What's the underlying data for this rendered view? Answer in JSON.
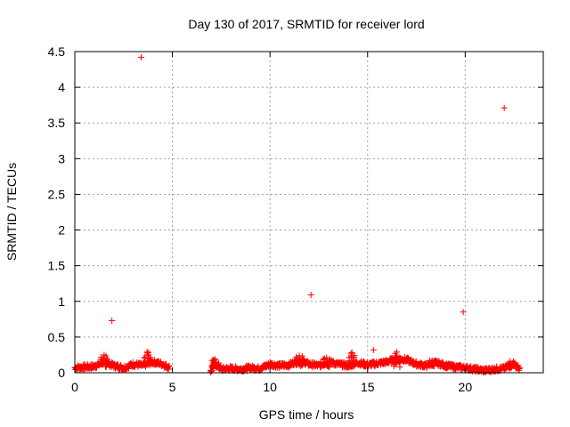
{
  "chart_data": {
    "type": "scatter",
    "title": "Day 130 of 2017, SRMTID for receiver lord",
    "xlabel": "GPS time / hours",
    "ylabel": "SRMTID / TECUs",
    "xlim": [
      0,
      24
    ],
    "ylim": [
      0,
      4.5
    ],
    "xticks": [
      0,
      5,
      10,
      15,
      20
    ],
    "yticks": [
      0,
      0.5,
      1,
      1.5,
      2,
      2.5,
      3,
      3.5,
      4,
      4.5
    ],
    "grid": true,
    "marker": "+",
    "color": "#ff0000",
    "baseline_segments": [
      {
        "x": [
          0.0,
          0.5,
          1.0,
          1.5,
          2.0,
          2.5,
          3.0,
          3.5,
          4.0,
          4.5,
          4.85
        ],
        "y": [
          0.07,
          0.08,
          0.09,
          0.15,
          0.1,
          0.07,
          0.12,
          0.1,
          0.15,
          0.12,
          0.07
        ]
      },
      {
        "x": [
          6.95,
          7.2,
          7.5,
          8.0,
          8.5,
          9.0,
          9.5,
          10.0,
          10.5,
          11.0,
          11.5,
          12.0,
          12.5,
          13.0,
          13.5,
          14.0,
          14.5,
          15.0,
          15.5,
          16.0,
          16.5,
          17.0,
          17.5,
          18.0,
          18.5,
          19.0,
          19.5,
          20.0,
          20.5,
          21.0,
          21.5,
          22.0,
          22.5,
          22.8
        ],
        "y": [
          0.02,
          0.12,
          0.05,
          0.06,
          0.05,
          0.07,
          0.06,
          0.12,
          0.1,
          0.11,
          0.18,
          0.12,
          0.1,
          0.15,
          0.12,
          0.1,
          0.14,
          0.11,
          0.13,
          0.15,
          0.2,
          0.18,
          0.12,
          0.1,
          0.14,
          0.1,
          0.08,
          0.07,
          0.05,
          0.03,
          0.05,
          0.06,
          0.12,
          0.05
        ]
      }
    ],
    "bumps": [
      {
        "x": 1.5,
        "y": 0.25
      },
      {
        "x": 3.7,
        "y": 0.29
      },
      {
        "x": 7.2,
        "y": 0.19
      },
      {
        "x": 11.5,
        "y": 0.24
      },
      {
        "x": 12.9,
        "y": 0.21
      },
      {
        "x": 14.2,
        "y": 0.28
      },
      {
        "x": 16.5,
        "y": 0.29
      },
      {
        "x": 18.3,
        "y": 0.17
      },
      {
        "x": 22.3,
        "y": 0.16
      }
    ],
    "outliers": [
      {
        "x": 1.9,
        "y": 0.73
      },
      {
        "x": 3.4,
        "y": 4.42
      },
      {
        "x": 12.1,
        "y": 1.09
      },
      {
        "x": 15.3,
        "y": 0.32
      },
      {
        "x": 19.9,
        "y": 0.85
      },
      {
        "x": 22.0,
        "y": 3.71
      }
    ]
  }
}
